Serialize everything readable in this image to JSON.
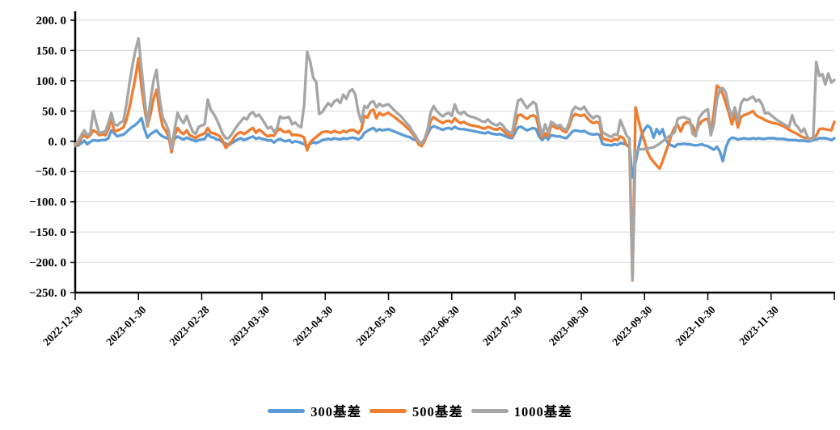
{
  "chart_data": {
    "type": "line",
    "title": "",
    "xlabel": "",
    "ylabel": "",
    "ylim": [
      -250,
      200
    ],
    "x_range": [
      0,
      252
    ],
    "x_unit": "trading-day index from 2022-12-30 (daily data)",
    "grid": "horizontal-only",
    "legend_position": "bottom-center",
    "axis_color": "#000000",
    "gridline_color": "#D9D9D9",
    "y_tick_values": [
      200,
      150,
      100,
      50,
      0,
      -50,
      -100,
      -150,
      -200,
      -250
    ],
    "y_tick_labels": [
      "200. 0",
      "150. 0",
      "100. 0",
      "50. 0",
      "0. 0",
      "−50. 0",
      "−100. 0",
      "−150. 0",
      "−200. 0",
      "−250. 0"
    ],
    "x_tick_positions": [
      0,
      21,
      42,
      62,
      83,
      104,
      125,
      146,
      168,
      189,
      210,
      231
    ],
    "x_tick_labels": [
      "2022-12-30",
      "2023-01-30",
      "2023-02-28",
      "2023-03-30",
      "2023-04-30",
      "2023-05-30",
      "2023-06-30",
      "2023-07-30",
      "2023-08-30",
      "2023-09-30",
      "2023-10-30",
      "2023-11-30"
    ],
    "x_end_tick_position": 252,
    "series": [
      {
        "name": "300基差",
        "color": "#5B9BD5"
      },
      {
        "name": "500基差",
        "color": "#ED7D31"
      },
      {
        "name": "1000基差",
        "color": "#A6A6A6"
      }
    ],
    "columns": [
      "day_index",
      "300基差",
      "500基差",
      "1000基差"
    ],
    "rows": [
      [
        0,
        -8,
        -7,
        -5
      ],
      [
        1,
        -7,
        -4,
        0
      ],
      [
        2,
        -3,
        5,
        10
      ],
      [
        3,
        1,
        10,
        18
      ],
      [
        4,
        -5,
        6,
        10
      ],
      [
        5,
        -1,
        10,
        13
      ],
      [
        6,
        2,
        18,
        50
      ],
      [
        7,
        1,
        15,
        30
      ],
      [
        8,
        1,
        10,
        13
      ],
      [
        9,
        2,
        12,
        15
      ],
      [
        10,
        2,
        10,
        16
      ],
      [
        11,
        5,
        20,
        30
      ],
      [
        12,
        18,
        38,
        47
      ],
      [
        13,
        13,
        16,
        28
      ],
      [
        14,
        8,
        18,
        26
      ],
      [
        15,
        10,
        20,
        31
      ],
      [
        16,
        11,
        23,
        33
      ],
      [
        17,
        15,
        35,
        60
      ],
      [
        18,
        20,
        55,
        95
      ],
      [
        19,
        24,
        80,
        125
      ],
      [
        20,
        27,
        105,
        150
      ],
      [
        21,
        32,
        137,
        170
      ],
      [
        22,
        38,
        90,
        120
      ],
      [
        23,
        20,
        55,
        72
      ],
      [
        24,
        6,
        25,
        28
      ],
      [
        25,
        12,
        45,
        68
      ],
      [
        26,
        15,
        70,
        100
      ],
      [
        27,
        18,
        85,
        118
      ],
      [
        28,
        12,
        50,
        72
      ],
      [
        29,
        8,
        25,
        40
      ],
      [
        30,
        6,
        18,
        30
      ],
      [
        31,
        4,
        8,
        18
      ],
      [
        32,
        0,
        -18,
        -12
      ],
      [
        33,
        4,
        10,
        20
      ],
      [
        34,
        8,
        22,
        47
      ],
      [
        35,
        5,
        15,
        36
      ],
      [
        36,
        3,
        12,
        30
      ],
      [
        37,
        6,
        18,
        42
      ],
      [
        38,
        4,
        10,
        28
      ],
      [
        39,
        2,
        8,
        16
      ],
      [
        40,
        0,
        5,
        12
      ],
      [
        41,
        2,
        9,
        24
      ],
      [
        42,
        3,
        11,
        26
      ],
      [
        43,
        4,
        13,
        28
      ],
      [
        44,
        12,
        22,
        69
      ],
      [
        45,
        7,
        14,
        52
      ],
      [
        46,
        6,
        13,
        45
      ],
      [
        47,
        3,
        11,
        36
      ],
      [
        48,
        2,
        8,
        24
      ],
      [
        49,
        -2,
        0,
        12
      ],
      [
        50,
        -4,
        -11,
        5
      ],
      [
        51,
        -6,
        -5,
        5
      ],
      [
        52,
        -3,
        0,
        12
      ],
      [
        53,
        0,
        8,
        20
      ],
      [
        54,
        3,
        13,
        27
      ],
      [
        55,
        5,
        15,
        33
      ],
      [
        56,
        2,
        12,
        39
      ],
      [
        57,
        4,
        15,
        36
      ],
      [
        58,
        6,
        19,
        45
      ],
      [
        59,
        8,
        22,
        48
      ],
      [
        60,
        4,
        14,
        41
      ],
      [
        61,
        6,
        19,
        44
      ],
      [
        62,
        4,
        16,
        37
      ],
      [
        63,
        3,
        11,
        29
      ],
      [
        64,
        1,
        8,
        21
      ],
      [
        65,
        2,
        10,
        24
      ],
      [
        66,
        -2,
        9,
        16
      ],
      [
        67,
        2,
        17,
        21
      ],
      [
        68,
        4,
        21,
        41
      ],
      [
        69,
        1,
        16,
        38
      ],
      [
        70,
        0,
        15,
        39
      ],
      [
        71,
        2,
        17,
        40
      ],
      [
        72,
        -2,
        10,
        28
      ],
      [
        73,
        0,
        11,
        31
      ],
      [
        74,
        -1,
        10,
        26
      ],
      [
        75,
        -3,
        9,
        23
      ],
      [
        76,
        -5,
        6,
        60
      ],
      [
        77,
        -8,
        -15,
        148
      ],
      [
        78,
        -4,
        -2,
        132
      ],
      [
        79,
        -2,
        3,
        105
      ],
      [
        80,
        -3,
        7,
        98
      ],
      [
        81,
        -1,
        11,
        45
      ],
      [
        82,
        2,
        15,
        48
      ],
      [
        83,
        3,
        16,
        56
      ],
      [
        84,
        4,
        16,
        63
      ],
      [
        85,
        3,
        14,
        58
      ],
      [
        86,
        5,
        17,
        66
      ],
      [
        87,
        4,
        15,
        69
      ],
      [
        88,
        3,
        14,
        63
      ],
      [
        89,
        5,
        17,
        77
      ],
      [
        90,
        4,
        15,
        70
      ],
      [
        91,
        5,
        18,
        82
      ],
      [
        92,
        6,
        19,
        86
      ],
      [
        93,
        5,
        17,
        77
      ],
      [
        94,
        3,
        13,
        48
      ],
      [
        95,
        6,
        20,
        32
      ],
      [
        96,
        14,
        42,
        58
      ],
      [
        97,
        17,
        39,
        55
      ],
      [
        98,
        20,
        50,
        64
      ],
      [
        99,
        22,
        52,
        66
      ],
      [
        100,
        17,
        38,
        56
      ],
      [
        101,
        20,
        47,
        62
      ],
      [
        102,
        18,
        43,
        58
      ],
      [
        103,
        19,
        45,
        60
      ],
      [
        104,
        20,
        47,
        61
      ],
      [
        105,
        18,
        43,
        56
      ],
      [
        106,
        16,
        40,
        51
      ],
      [
        107,
        14,
        36,
        46
      ],
      [
        108,
        12,
        32,
        42
      ],
      [
        109,
        10,
        28,
        36
      ],
      [
        110,
        8,
        23,
        30
      ],
      [
        111,
        7,
        19,
        25
      ],
      [
        112,
        4,
        12,
        16
      ],
      [
        113,
        2,
        6,
        9
      ],
      [
        114,
        -1,
        -5,
        0
      ],
      [
        115,
        -2,
        -8,
        -4
      ],
      [
        116,
        2,
        0,
        4
      ],
      [
        117,
        12,
        16,
        20
      ],
      [
        118,
        22,
        34,
        48
      ],
      [
        119,
        25,
        40,
        58
      ],
      [
        120,
        23,
        36,
        50
      ],
      [
        121,
        21,
        33,
        45
      ],
      [
        122,
        19,
        30,
        41
      ],
      [
        123,
        21,
        33,
        45
      ],
      [
        124,
        22,
        34,
        47
      ],
      [
        125,
        20,
        31,
        42
      ],
      [
        126,
        24,
        38,
        61
      ],
      [
        127,
        21,
        33,
        48
      ],
      [
        128,
        20,
        30,
        45
      ],
      [
        129,
        20,
        32,
        49
      ],
      [
        130,
        19,
        29,
        44
      ],
      [
        131,
        18,
        27,
        41
      ],
      [
        132,
        17,
        26,
        40
      ],
      [
        133,
        16,
        25,
        38
      ],
      [
        134,
        15,
        24,
        36
      ],
      [
        135,
        14,
        22,
        33
      ],
      [
        136,
        13,
        21,
        32
      ],
      [
        137,
        15,
        24,
        36
      ],
      [
        138,
        13,
        22,
        31
      ],
      [
        139,
        12,
        20,
        28
      ],
      [
        140,
        11,
        19,
        26
      ],
      [
        141,
        12,
        22,
        30
      ],
      [
        142,
        10,
        18,
        26
      ],
      [
        143,
        8,
        13,
        19
      ],
      [
        144,
        6,
        10,
        15
      ],
      [
        145,
        5,
        8,
        13
      ],
      [
        146,
        14,
        26,
        40
      ],
      [
        147,
        23,
        43,
        67
      ],
      [
        148,
        24,
        44,
        70
      ],
      [
        149,
        21,
        40,
        62
      ],
      [
        150,
        18,
        37,
        55
      ],
      [
        151,
        20,
        41,
        60
      ],
      [
        152,
        22,
        43,
        65
      ],
      [
        153,
        20,
        40,
        61
      ],
      [
        154,
        8,
        20,
        30
      ],
      [
        155,
        2,
        6,
        10
      ],
      [
        156,
        8,
        13,
        28
      ],
      [
        157,
        3,
        8,
        14
      ],
      [
        158,
        10,
        26,
        32
      ],
      [
        159,
        9,
        24,
        29
      ],
      [
        160,
        8,
        21,
        25
      ],
      [
        161,
        8,
        22,
        27
      ],
      [
        162,
        6,
        17,
        21
      ],
      [
        163,
        5,
        15,
        19
      ],
      [
        164,
        10,
        25,
        31
      ],
      [
        165,
        16,
        40,
        50
      ],
      [
        166,
        18,
        45,
        57
      ],
      [
        167,
        17,
        43,
        54
      ],
      [
        168,
        16,
        42,
        53
      ],
      [
        169,
        17,
        44,
        57
      ],
      [
        170,
        14,
        38,
        48
      ],
      [
        171,
        12,
        33,
        42
      ],
      [
        172,
        11,
        30,
        38
      ],
      [
        173,
        12,
        32,
        42
      ],
      [
        174,
        11,
        30,
        40
      ],
      [
        175,
        -4,
        5,
        15
      ],
      [
        176,
        -6,
        3,
        12
      ],
      [
        177,
        -6,
        2,
        9
      ],
      [
        178,
        -7,
        0,
        7
      ],
      [
        179,
        -5,
        4,
        12
      ],
      [
        180,
        -6,
        2,
        10
      ],
      [
        181,
        -3,
        8,
        35
      ],
      [
        182,
        -4,
        5,
        22
      ],
      [
        183,
        -6,
        -6,
        10
      ],
      [
        184,
        -8,
        -10,
        4
      ],
      [
        185,
        -60,
        -230,
        -229
      ],
      [
        186,
        -35,
        56,
        -15
      ],
      [
        187,
        -10,
        35,
        -14
      ],
      [
        188,
        10,
        15,
        -13
      ],
      [
        189,
        20,
        0,
        -13
      ],
      [
        190,
        26,
        -18,
        -12
      ],
      [
        191,
        22,
        -28,
        -11
      ],
      [
        192,
        6,
        -34,
        -10
      ],
      [
        193,
        20,
        -40,
        -7
      ],
      [
        194,
        12,
        -45,
        -4
      ],
      [
        195,
        20,
        -33,
        0
      ],
      [
        196,
        3,
        -18,
        4
      ],
      [
        197,
        -4,
        -4,
        8
      ],
      [
        198,
        -7,
        12,
        11
      ],
      [
        199,
        -9,
        23,
        15
      ],
      [
        200,
        -5,
        27,
        37
      ],
      [
        201,
        -5,
        16,
        39
      ],
      [
        202,
        -4,
        28,
        40
      ],
      [
        203,
        -5,
        32,
        38
      ],
      [
        204,
        -5,
        30,
        36
      ],
      [
        205,
        -6,
        25,
        12
      ],
      [
        206,
        -7,
        13,
        8
      ],
      [
        207,
        -6,
        26,
        38
      ],
      [
        208,
        -5,
        33,
        45
      ],
      [
        209,
        -7,
        36,
        50
      ],
      [
        210,
        -8,
        37,
        53
      ],
      [
        211,
        -11,
        15,
        10
      ],
      [
        212,
        -14,
        48,
        28
      ],
      [
        213,
        -9,
        92,
        68
      ],
      [
        214,
        -17,
        88,
        86
      ],
      [
        215,
        -33,
        78,
        88
      ],
      [
        216,
        -10,
        62,
        80
      ],
      [
        217,
        2,
        46,
        55
      ],
      [
        218,
        6,
        28,
        40
      ],
      [
        219,
        5,
        45,
        56
      ],
      [
        220,
        3,
        23,
        34
      ],
      [
        221,
        4,
        40,
        62
      ],
      [
        222,
        5,
        43,
        70
      ],
      [
        223,
        4,
        45,
        68
      ],
      [
        224,
        4,
        47,
        71
      ],
      [
        225,
        5,
        50,
        74
      ],
      [
        226,
        4,
        43,
        66
      ],
      [
        227,
        5,
        40,
        69
      ],
      [
        228,
        4,
        38,
        61
      ],
      [
        229,
        4,
        35,
        46
      ],
      [
        230,
        5,
        33,
        47
      ],
      [
        231,
        5,
        31,
        43
      ],
      [
        232,
        5,
        30,
        39
      ],
      [
        233,
        4,
        29,
        35
      ],
      [
        234,
        4,
        27,
        32
      ],
      [
        235,
        4,
        25,
        29
      ],
      [
        236,
        3,
        22,
        26
      ],
      [
        237,
        2,
        19,
        24
      ],
      [
        238,
        2,
        16,
        43
      ],
      [
        239,
        2,
        14,
        28
      ],
      [
        240,
        1,
        11,
        23
      ],
      [
        241,
        1,
        8,
        15
      ],
      [
        242,
        1,
        6,
        21
      ],
      [
        243,
        0,
        5,
        8
      ],
      [
        244,
        0,
        4,
        1
      ],
      [
        245,
        2,
        6,
        5
      ],
      [
        246,
        3,
        9,
        131
      ],
      [
        247,
        5,
        20,
        108
      ],
      [
        248,
        5,
        21,
        111
      ],
      [
        249,
        5,
        20,
        94
      ],
      [
        250,
        4,
        19,
        112
      ],
      [
        251,
        2,
        18,
        97
      ],
      [
        252,
        5,
        32,
        101
      ]
    ]
  }
}
